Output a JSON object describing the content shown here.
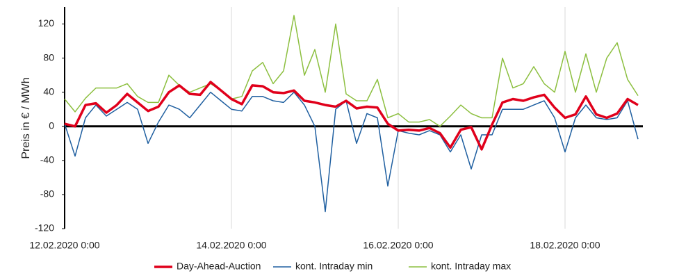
{
  "chart_data": {
    "type": "line",
    "y_label": "Preis in € / MWh",
    "x": [
      "12.02.2020 0:00",
      "12.02.2020 3:00",
      "12.02.2020 6:00",
      "12.02.2020 9:00",
      "12.02.2020 12:00",
      "12.02.2020 15:00",
      "12.02.2020 18:00",
      "12.02.2020 21:00",
      "13.02.2020 0:00",
      "13.02.2020 3:00",
      "13.02.2020 6:00",
      "13.02.2020 9:00",
      "13.02.2020 12:00",
      "13.02.2020 15:00",
      "13.02.2020 18:00",
      "13.02.2020 21:00",
      "14.02.2020 0:00",
      "14.02.2020 3:00",
      "14.02.2020 6:00",
      "14.02.2020 9:00",
      "14.02.2020 12:00",
      "14.02.2020 15:00",
      "14.02.2020 18:00",
      "14.02.2020 21:00",
      "15.02.2020 0:00",
      "15.02.2020 3:00",
      "15.02.2020 6:00",
      "15.02.2020 9:00",
      "15.02.2020 12:00",
      "15.02.2020 15:00",
      "15.02.2020 18:00",
      "15.02.2020 21:00",
      "16.02.2020 0:00",
      "16.02.2020 3:00",
      "16.02.2020 6:00",
      "16.02.2020 9:00",
      "16.02.2020 12:00",
      "16.02.2020 15:00",
      "16.02.2020 18:00",
      "16.02.2020 21:00",
      "17.02.2020 0:00",
      "17.02.2020 3:00",
      "17.02.2020 6:00",
      "17.02.2020 9:00",
      "17.02.2020 12:00",
      "17.02.2020 15:00",
      "17.02.2020 18:00",
      "17.02.2020 21:00",
      "18.02.2020 0:00",
      "18.02.2020 3:00",
      "18.02.2020 6:00",
      "18.02.2020 9:00",
      "18.02.2020 12:00",
      "18.02.2020 15:00",
      "18.02.2020 18:00",
      "18.02.2020 21:00"
    ],
    "series": [
      {
        "name": "Day-Ahead-Auction",
        "color": "#e0001b",
        "values": [
          3,
          0,
          25,
          27,
          16,
          25,
          38,
          28,
          18,
          23,
          40,
          48,
          38,
          37,
          52,
          42,
          32,
          26,
          48,
          47,
          40,
          39,
          42,
          30,
          28,
          25,
          23,
          30,
          21,
          23,
          22,
          3,
          -5,
          -4,
          -5,
          -2,
          -8,
          -25,
          -4,
          -1,
          -27,
          2,
          28,
          32,
          30,
          34,
          37,
          22,
          10,
          14,
          35,
          14,
          10,
          15,
          32,
          25
        ]
      },
      {
        "name": "kont. Intraday min",
        "color": "#1f5fa0",
        "values": [
          3,
          -35,
          10,
          25,
          12,
          20,
          28,
          20,
          -20,
          5,
          25,
          20,
          10,
          25,
          40,
          30,
          20,
          18,
          35,
          35,
          30,
          28,
          40,
          25,
          0,
          -100,
          20,
          30,
          -20,
          15,
          10,
          -70,
          -5,
          -8,
          -10,
          -5,
          -10,
          -30,
          -10,
          -50,
          -10,
          -10,
          20,
          20,
          20,
          25,
          30,
          10,
          -30,
          10,
          25,
          10,
          8,
          10,
          30,
          -15
        ]
      },
      {
        "name": "kont. Intraday max",
        "color": "#8cbf3f",
        "values": [
          32,
          17,
          33,
          45,
          45,
          45,
          50,
          35,
          28,
          28,
          60,
          48,
          40,
          45,
          50,
          42,
          32,
          35,
          65,
          75,
          50,
          65,
          130,
          60,
          90,
          40,
          120,
          38,
          30,
          30,
          55,
          10,
          15,
          5,
          5,
          8,
          0,
          12,
          25,
          15,
          10,
          10,
          80,
          45,
          50,
          70,
          50,
          40,
          88,
          40,
          85,
          40,
          80,
          98,
          55,
          36
        ]
      }
    ],
    "xlim": [
      "12.02.2020 0:00",
      "19.02.2020 0:00"
    ],
    "xticks": [
      "12.02.2020 0:00",
      "14.02.2020 0:00",
      "16.02.2020 0:00",
      "18.02.2020 0:00"
    ],
    "ylim": [
      -120,
      140
    ],
    "yticks": [
      -120,
      -80,
      -40,
      0,
      40,
      80,
      120
    ],
    "grid": true,
    "legend": "bottom"
  }
}
